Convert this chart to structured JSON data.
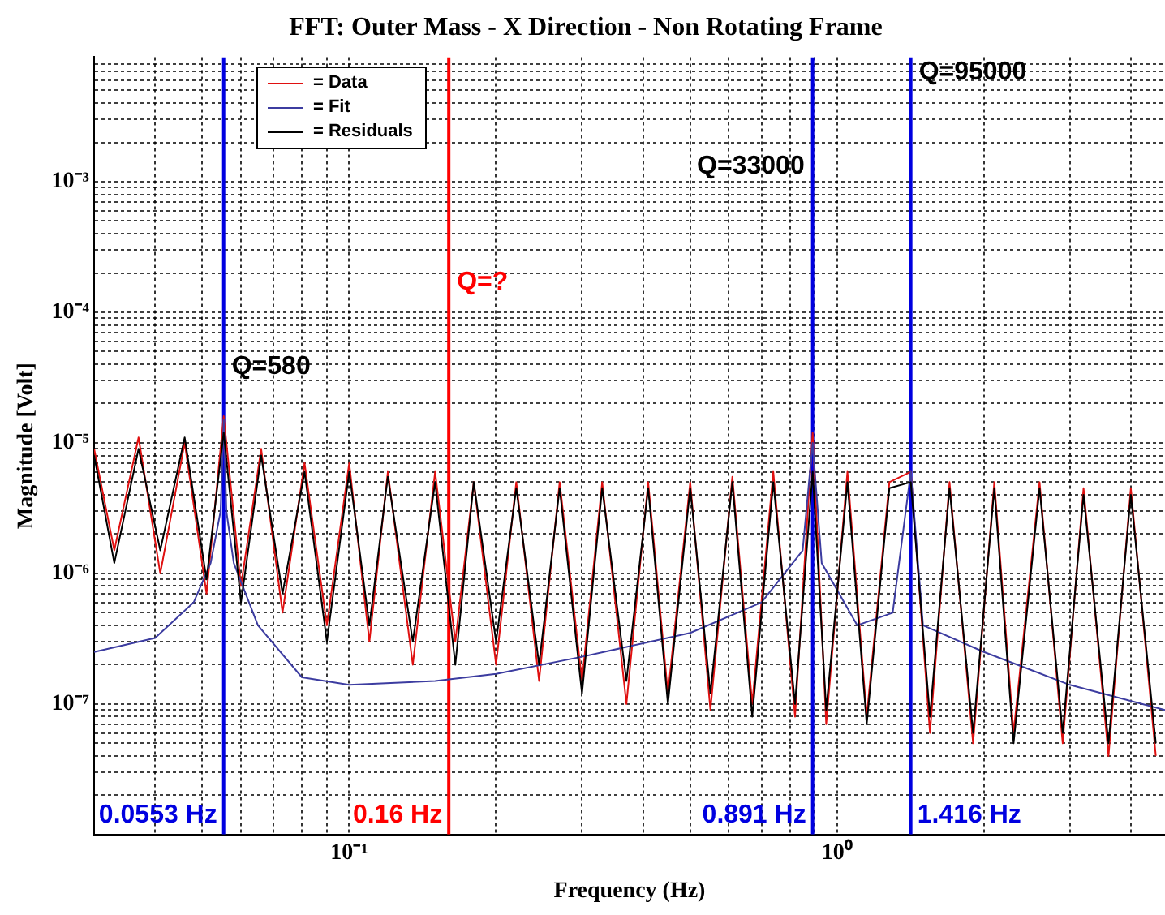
{
  "chart_data": {
    "type": "line",
    "title": "FFT: Outer Mass - X Direction - Non Rotating Frame",
    "xlabel": "Frequency (Hz)",
    "ylabel": "Magnitude [Volt]",
    "log": "xy",
    "grid": true,
    "legend": "top left",
    "xlim": [
      0.03,
      4.7
    ],
    "xticks": [
      {
        "value": 0.04,
        "label": null
      },
      {
        "value": 0.05,
        "label": null
      },
      {
        "value": 0.06,
        "label": null
      },
      {
        "value": 0.07,
        "label": null
      },
      {
        "value": 0.08,
        "label": null
      },
      {
        "value": 0.09,
        "label": null
      },
      {
        "value": 0.1,
        "label": "10⁻¹"
      },
      {
        "value": 0.2,
        "label": null
      },
      {
        "value": 0.3,
        "label": null
      },
      {
        "value": 0.4,
        "label": null
      },
      {
        "value": 0.5,
        "label": null
      },
      {
        "value": 0.6,
        "label": null
      },
      {
        "value": 0.7,
        "label": null
      },
      {
        "value": 0.8,
        "label": null
      },
      {
        "value": 0.9,
        "label": null
      },
      {
        "value": 1,
        "label": "10⁰"
      },
      {
        "value": 2,
        "label": null
      },
      {
        "value": 3,
        "label": null
      },
      {
        "value": 4,
        "label": null
      }
    ],
    "ylim": [
      1e-08,
      0.009
    ],
    "yticks": [
      {
        "value": 2e-08,
        "label": null
      },
      {
        "value": 3e-08,
        "label": null
      },
      {
        "value": 4e-08,
        "label": null
      },
      {
        "value": 5e-08,
        "label": null
      },
      {
        "value": 6e-08,
        "label": null
      },
      {
        "value": 7e-08,
        "label": null
      },
      {
        "value": 8e-08,
        "label": null
      },
      {
        "value": 9e-08,
        "label": null
      },
      {
        "value": 1e-07,
        "label": "10⁻⁷"
      },
      {
        "value": 2e-07,
        "label": null
      },
      {
        "value": 3e-07,
        "label": null
      },
      {
        "value": 4e-07,
        "label": null
      },
      {
        "value": 5e-07,
        "label": null
      },
      {
        "value": 6e-07,
        "label": null
      },
      {
        "value": 7e-07,
        "label": null
      },
      {
        "value": 8e-07,
        "label": null
      },
      {
        "value": 9e-07,
        "label": null
      },
      {
        "value": 1e-06,
        "label": "10⁻⁶"
      },
      {
        "value": 2e-06,
        "label": null
      },
      {
        "value": 3e-06,
        "label": null
      },
      {
        "value": 4e-06,
        "label": null
      },
      {
        "value": 5e-06,
        "label": null
      },
      {
        "value": 6e-06,
        "label": null
      },
      {
        "value": 7e-06,
        "label": null
      },
      {
        "value": 8e-06,
        "label": null
      },
      {
        "value": 9e-06,
        "label": null
      },
      {
        "value": 1e-05,
        "label": "10⁻⁵"
      },
      {
        "value": 2e-05,
        "label": null
      },
      {
        "value": 3e-05,
        "label": null
      },
      {
        "value": 4e-05,
        "label": null
      },
      {
        "value": 5e-05,
        "label": null
      },
      {
        "value": 6e-05,
        "label": null
      },
      {
        "value": 7e-05,
        "label": null
      },
      {
        "value": 8e-05,
        "label": null
      },
      {
        "value": 9e-05,
        "label": null
      },
      {
        "value": 0.0001,
        "label": "10⁻⁴"
      },
      {
        "value": 0.0002,
        "label": null
      },
      {
        "value": 0.0003,
        "label": null
      },
      {
        "value": 0.0004,
        "label": null
      },
      {
        "value": 0.0005,
        "label": null
      },
      {
        "value": 0.0006,
        "label": null
      },
      {
        "value": 0.0007,
        "label": null
      },
      {
        "value": 0.0008,
        "label": null
      },
      {
        "value": 0.0009,
        "label": null
      },
      {
        "value": 0.001,
        "label": "10⁻³"
      },
      {
        "value": 0.002,
        "label": null
      },
      {
        "value": 0.003,
        "label": null
      },
      {
        "value": 0.004,
        "label": null
      },
      {
        "value": 0.005,
        "label": null
      },
      {
        "value": 0.006,
        "label": null
      },
      {
        "value": 0.007,
        "label": null
      },
      {
        "value": 0.008,
        "label": null
      }
    ],
    "x": [
      0.03,
      0.033,
      0.037,
      0.041,
      0.046,
      0.051,
      0.0553,
      0.06,
      0.066,
      0.073,
      0.081,
      0.09,
      0.1,
      0.11,
      0.12,
      0.135,
      0.15,
      0.165,
      0.18,
      0.2,
      0.22,
      0.245,
      0.27,
      0.3,
      0.33,
      0.37,
      0.41,
      0.45,
      0.5,
      0.55,
      0.61,
      0.67,
      0.74,
      0.82,
      0.891,
      0.95,
      1.05,
      1.15,
      1.28,
      1.416,
      1.55,
      1.7,
      1.9,
      2.1,
      2.3,
      2.6,
      2.9,
      3.2,
      3.6,
      4.0,
      4.5
    ],
    "series": [
      {
        "name": "= Data",
        "color": "#e01010",
        "values": [
          9e-06,
          1.5e-06,
          1.1e-05,
          1e-06,
          1e-05,
          7e-07,
          1.6e-05,
          8e-07,
          9e-06,
          5e-07,
          7e-06,
          4e-07,
          7e-06,
          3e-07,
          6e-06,
          2e-07,
          6e-06,
          3e-07,
          5e-06,
          2e-07,
          5e-06,
          1.5e-07,
          5e-06,
          1.5e-07,
          5e-06,
          1e-07,
          5e-06,
          1.2e-07,
          5e-06,
          9e-08,
          5.5e-06,
          1e-07,
          6e-06,
          8e-08,
          1.2e-05,
          7e-08,
          6e-06,
          8e-08,
          5e-06,
          6e-06,
          6e-08,
          5e-06,
          5e-08,
          5e-06,
          6e-08,
          5e-06,
          5e-08,
          4.5e-06,
          4e-08,
          4.5e-06,
          4e-08
        ]
      },
      {
        "name": "= Fit",
        "color": "#3c3ca0",
        "x": [
          0.03,
          0.04,
          0.048,
          0.052,
          0.0545,
          0.0553,
          0.056,
          0.058,
          0.065,
          0.08,
          0.1,
          0.15,
          0.2,
          0.3,
          0.5,
          0.7,
          0.85,
          0.891,
          0.93,
          1.1,
          1.3,
          1.416,
          1.5,
          2,
          3,
          4.7
        ],
        "values": [
          2.5e-07,
          3.2e-07,
          6e-07,
          1.2e-06,
          3e-06,
          1.5e-05,
          3e-06,
          1.2e-06,
          4e-07,
          1.6e-07,
          1.4e-07,
          1.5e-07,
          1.7e-07,
          2.3e-07,
          3.5e-07,
          6e-07,
          1.5e-06,
          1e-05,
          1.2e-06,
          4e-07,
          5e-07,
          6e-06,
          4e-07,
          2.5e-07,
          1.4e-07,
          9e-08
        ]
      },
      {
        "name": "= Residuals",
        "color": "#000000",
        "values": [
          8e-06,
          1.2e-06,
          9e-06,
          1.5e-06,
          1.1e-05,
          9e-07,
          1.2e-05,
          6e-07,
          8e-06,
          7e-07,
          6e-06,
          3e-07,
          6e-06,
          4e-07,
          5.5e-06,
          3e-07,
          5e-06,
          2e-07,
          5e-06,
          3e-07,
          4.5e-06,
          2e-07,
          4.5e-06,
          1.2e-07,
          4.5e-06,
          1.5e-07,
          4.5e-06,
          1e-07,
          4.5e-06,
          1.2e-07,
          5e-06,
          8e-08,
          5e-06,
          1e-07,
          6e-06,
          9e-08,
          5e-06,
          7e-08,
          4.5e-06,
          5e-06,
          8e-08,
          4.5e-06,
          6e-08,
          4.5e-06,
          5e-08,
          4.5e-06,
          6e-08,
          4e-06,
          5e-08,
          4e-06,
          5e-08
        ]
      }
    ],
    "ref_lines": [
      {
        "axis": "x",
        "value": 0.0553,
        "label": "0.0553 Hz",
        "color": "#0000e0"
      },
      {
        "axis": "x",
        "value": 0.16,
        "label": "0.16 Hz",
        "color": "#ff0000"
      },
      {
        "axis": "x",
        "value": 0.891,
        "label": "0.891 Hz",
        "color": "#0000e0"
      },
      {
        "axis": "x",
        "value": 1.416,
        "label": "1.416 Hz",
        "color": "#0000e0"
      }
    ],
    "annotations": [
      {
        "text": "Q=580",
        "x": 0.0553,
        "y": 3.8e-05
      },
      {
        "text": "Q=?",
        "x": 0.16,
        "y": 0.00017
      },
      {
        "text": "Q=33000",
        "x": 0.891,
        "y": 0.0013
      },
      {
        "text": "Q=95000",
        "x": 1.416,
        "y": 0.0069
      }
    ]
  }
}
